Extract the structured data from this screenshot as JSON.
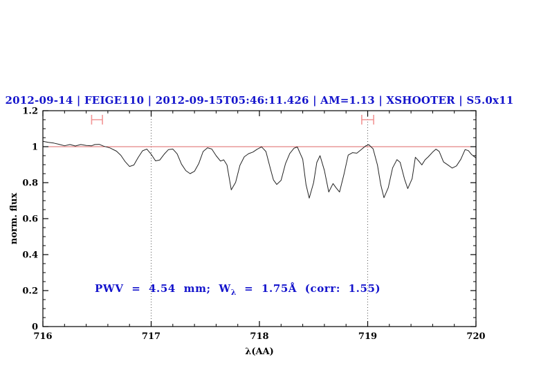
{
  "header": {
    "title": "2012-09-14 | FEIGE110 | 2012-09-15T05:46:11.426 | AM=1.13 | XSHOOTER | S5.0x11"
  },
  "annotation": {
    "pre": "PWV  =  4.54  mm;  W",
    "sub": "λ",
    "post": "  =  1.75Å  (corr:  1.55)"
  },
  "colors": {
    "title_blue": "#1414cc",
    "spectrum": "#222222",
    "reference_line": "#dd6666",
    "marker_pink": "#f29595",
    "dotted_line": "#555555",
    "axis": "#000000"
  },
  "chart_data": {
    "type": "line",
    "title": "2012-09-14 | FEIGE110 | 2012-09-15T05:46:11.426 | AM=1.13 | XSHOOTER | S5.0x11",
    "xlabel": "λ(AA)",
    "ylabel": "norm. flux",
    "xlim": [
      716,
      720
    ],
    "ylim": [
      0,
      1.2
    ],
    "grid": "off",
    "legend": "none",
    "x_ticks": {
      "major": [
        716,
        717,
        718,
        719,
        720
      ],
      "labels": [
        "716",
        "717",
        "718",
        "719",
        "720"
      ],
      "minor_step": 0.2
    },
    "y_ticks": {
      "major": [
        0,
        0.2,
        0.4,
        0.6,
        0.8,
        1,
        1.2
      ],
      "labels": [
        "0",
        "0.2",
        "0.4",
        "0.6",
        "0.8",
        "1",
        "1.2"
      ],
      "minor_step": 0.05
    },
    "reference_line_y": 1.0,
    "dotted_vlines": [
      717,
      719
    ],
    "range_markers": [
      {
        "x_center": 716.5,
        "x_half_width": 0.05,
        "y_center": 1.15
      },
      {
        "x_center": 719.0,
        "x_half_width": 0.055,
        "y_center": 1.15
      }
    ],
    "annotation_text": "PWV = 4.54 mm; Wλ = 1.75Å (corr: 1.55)",
    "series": [
      {
        "name": "normalized-spectrum",
        "points": [
          [
            716.0,
            1.03
          ],
          [
            716.05,
            1.024
          ],
          [
            716.1,
            1.02
          ],
          [
            716.15,
            1.013
          ],
          [
            716.2,
            1.005
          ],
          [
            716.25,
            1.012
          ],
          [
            716.3,
            1.004
          ],
          [
            716.35,
            1.012
          ],
          [
            716.4,
            1.007
          ],
          [
            716.45,
            1.005
          ],
          [
            716.48,
            1.012
          ],
          [
            716.52,
            1.013
          ],
          [
            716.56,
            1.003
          ],
          [
            716.62,
            0.993
          ],
          [
            716.68,
            0.975
          ],
          [
            716.72,
            0.952
          ],
          [
            716.76,
            0.917
          ],
          [
            716.8,
            0.89
          ],
          [
            716.84,
            0.898
          ],
          [
            716.88,
            0.94
          ],
          [
            716.92,
            0.977
          ],
          [
            716.96,
            0.987
          ],
          [
            717.0,
            0.958
          ],
          [
            717.04,
            0.921
          ],
          [
            717.08,
            0.926
          ],
          [
            717.12,
            0.958
          ],
          [
            717.16,
            0.984
          ],
          [
            717.2,
            0.987
          ],
          [
            717.24,
            0.96
          ],
          [
            717.28,
            0.903
          ],
          [
            717.32,
            0.867
          ],
          [
            717.36,
            0.85
          ],
          [
            717.4,
            0.863
          ],
          [
            717.44,
            0.907
          ],
          [
            717.48,
            0.973
          ],
          [
            717.52,
            0.994
          ],
          [
            717.56,
            0.987
          ],
          [
            717.6,
            0.95
          ],
          [
            717.64,
            0.92
          ],
          [
            717.67,
            0.927
          ],
          [
            717.7,
            0.898
          ],
          [
            717.74,
            0.76
          ],
          [
            717.78,
            0.802
          ],
          [
            717.82,
            0.896
          ],
          [
            717.86,
            0.944
          ],
          [
            717.9,
            0.961
          ],
          [
            717.94,
            0.97
          ],
          [
            717.98,
            0.986
          ],
          [
            718.02,
            0.999
          ],
          [
            718.06,
            0.973
          ],
          [
            718.1,
            0.88
          ],
          [
            718.13,
            0.815
          ],
          [
            718.16,
            0.79
          ],
          [
            718.2,
            0.813
          ],
          [
            718.24,
            0.905
          ],
          [
            718.28,
            0.962
          ],
          [
            718.32,
            0.992
          ],
          [
            718.35,
            0.998
          ],
          [
            718.4,
            0.93
          ],
          [
            718.43,
            0.79
          ],
          [
            718.46,
            0.714
          ],
          [
            718.5,
            0.8
          ],
          [
            718.53,
            0.912
          ],
          [
            718.56,
            0.95
          ],
          [
            718.6,
            0.868
          ],
          [
            718.64,
            0.748
          ],
          [
            718.68,
            0.795
          ],
          [
            718.71,
            0.77
          ],
          [
            718.74,
            0.748
          ],
          [
            718.78,
            0.845
          ],
          [
            718.82,
            0.953
          ],
          [
            718.86,
            0.967
          ],
          [
            718.9,
            0.964
          ],
          [
            718.94,
            0.984
          ],
          [
            718.98,
            1.004
          ],
          [
            719.01,
            1.011
          ],
          [
            719.05,
            0.988
          ],
          [
            719.09,
            0.898
          ],
          [
            719.12,
            0.79
          ],
          [
            719.15,
            0.716
          ],
          [
            719.19,
            0.772
          ],
          [
            719.23,
            0.882
          ],
          [
            719.27,
            0.928
          ],
          [
            719.3,
            0.913
          ],
          [
            719.34,
            0.82
          ],
          [
            719.37,
            0.767
          ],
          [
            719.41,
            0.822
          ],
          [
            719.44,
            0.941
          ],
          [
            719.47,
            0.921
          ],
          [
            719.5,
            0.899
          ],
          [
            719.53,
            0.927
          ],
          [
            719.56,
            0.944
          ],
          [
            719.6,
            0.97
          ],
          [
            719.63,
            0.986
          ],
          [
            719.66,
            0.974
          ],
          [
            719.7,
            0.915
          ],
          [
            719.74,
            0.899
          ],
          [
            719.78,
            0.881
          ],
          [
            719.82,
            0.893
          ],
          [
            719.86,
            0.93
          ],
          [
            719.9,
            0.984
          ],
          [
            719.93,
            0.978
          ],
          [
            719.96,
            0.956
          ],
          [
            720.0,
            0.937
          ]
        ]
      }
    ]
  }
}
